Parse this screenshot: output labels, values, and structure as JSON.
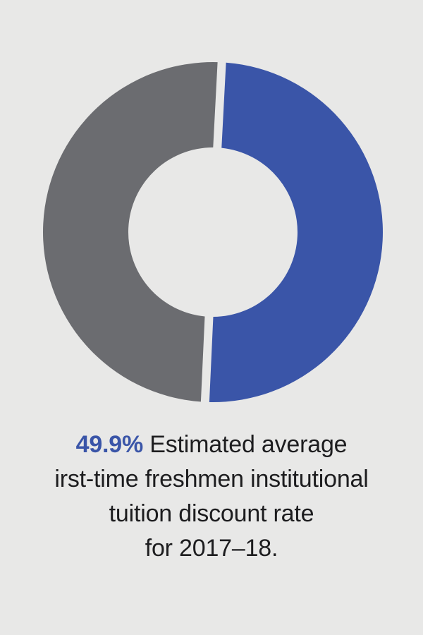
{
  "chart_data": {
    "type": "pie",
    "style": "donut",
    "slices": [
      {
        "label": "",
        "value": 49.9,
        "color": "#3a55a8"
      },
      {
        "label": "",
        "value": 50.1,
        "color": "#6b6c70"
      }
    ],
    "background_color": "#e8e8e7",
    "title": "",
    "legend": "none"
  },
  "caption": {
    "highlight": "49.9%",
    "line1_rest": " Estimated average",
    "line2": "irst-time freshmen institutional",
    "line3": "tuition discount rate",
    "line4": "for 2017–18."
  },
  "colors": {
    "highlight": "#3a55a8",
    "text": "#1d1d1f"
  }
}
